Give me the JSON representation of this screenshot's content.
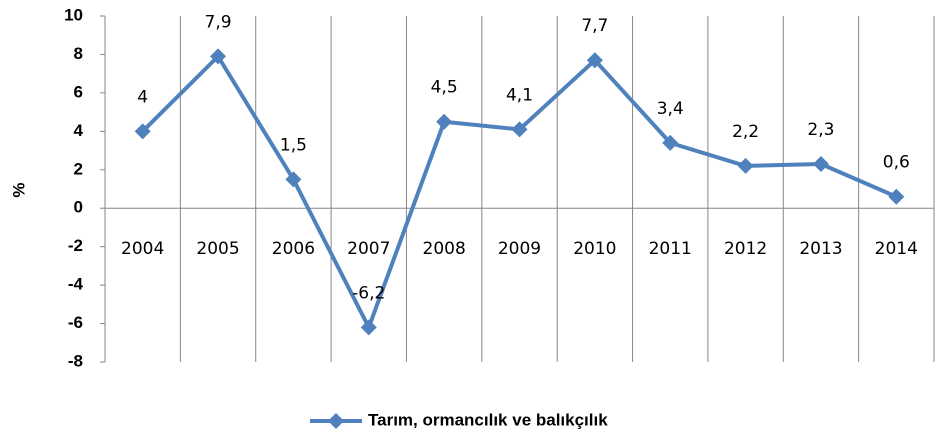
{
  "chart_data": {
    "type": "line",
    "y_label": "%",
    "categories": [
      "2004",
      "2005",
      "2006",
      "2007",
      "2008",
      "2009",
      "2010",
      "2011",
      "2012",
      "2013",
      "2014"
    ],
    "series": [
      {
        "name": "Tarım, ormancılık ve balıkçılık",
        "color": "#4f81bd",
        "values": [
          4,
          7.9,
          1.5,
          -6.2,
          4.5,
          4.1,
          7.7,
          3.4,
          2.2,
          2.3,
          0.6
        ],
        "value_labels": [
          "4",
          "7,9",
          "1,5",
          "-6,2",
          "4,5",
          "4,1",
          "7,7",
          "3,4",
          "2,2",
          "2,3",
          "0,6"
        ]
      }
    ],
    "ylim": [
      -8,
      10
    ],
    "yticks": [
      -8,
      -6,
      -4,
      -2,
      0,
      2,
      4,
      6,
      8,
      10
    ],
    "vertical_grid": true,
    "legend": "bottom"
  }
}
